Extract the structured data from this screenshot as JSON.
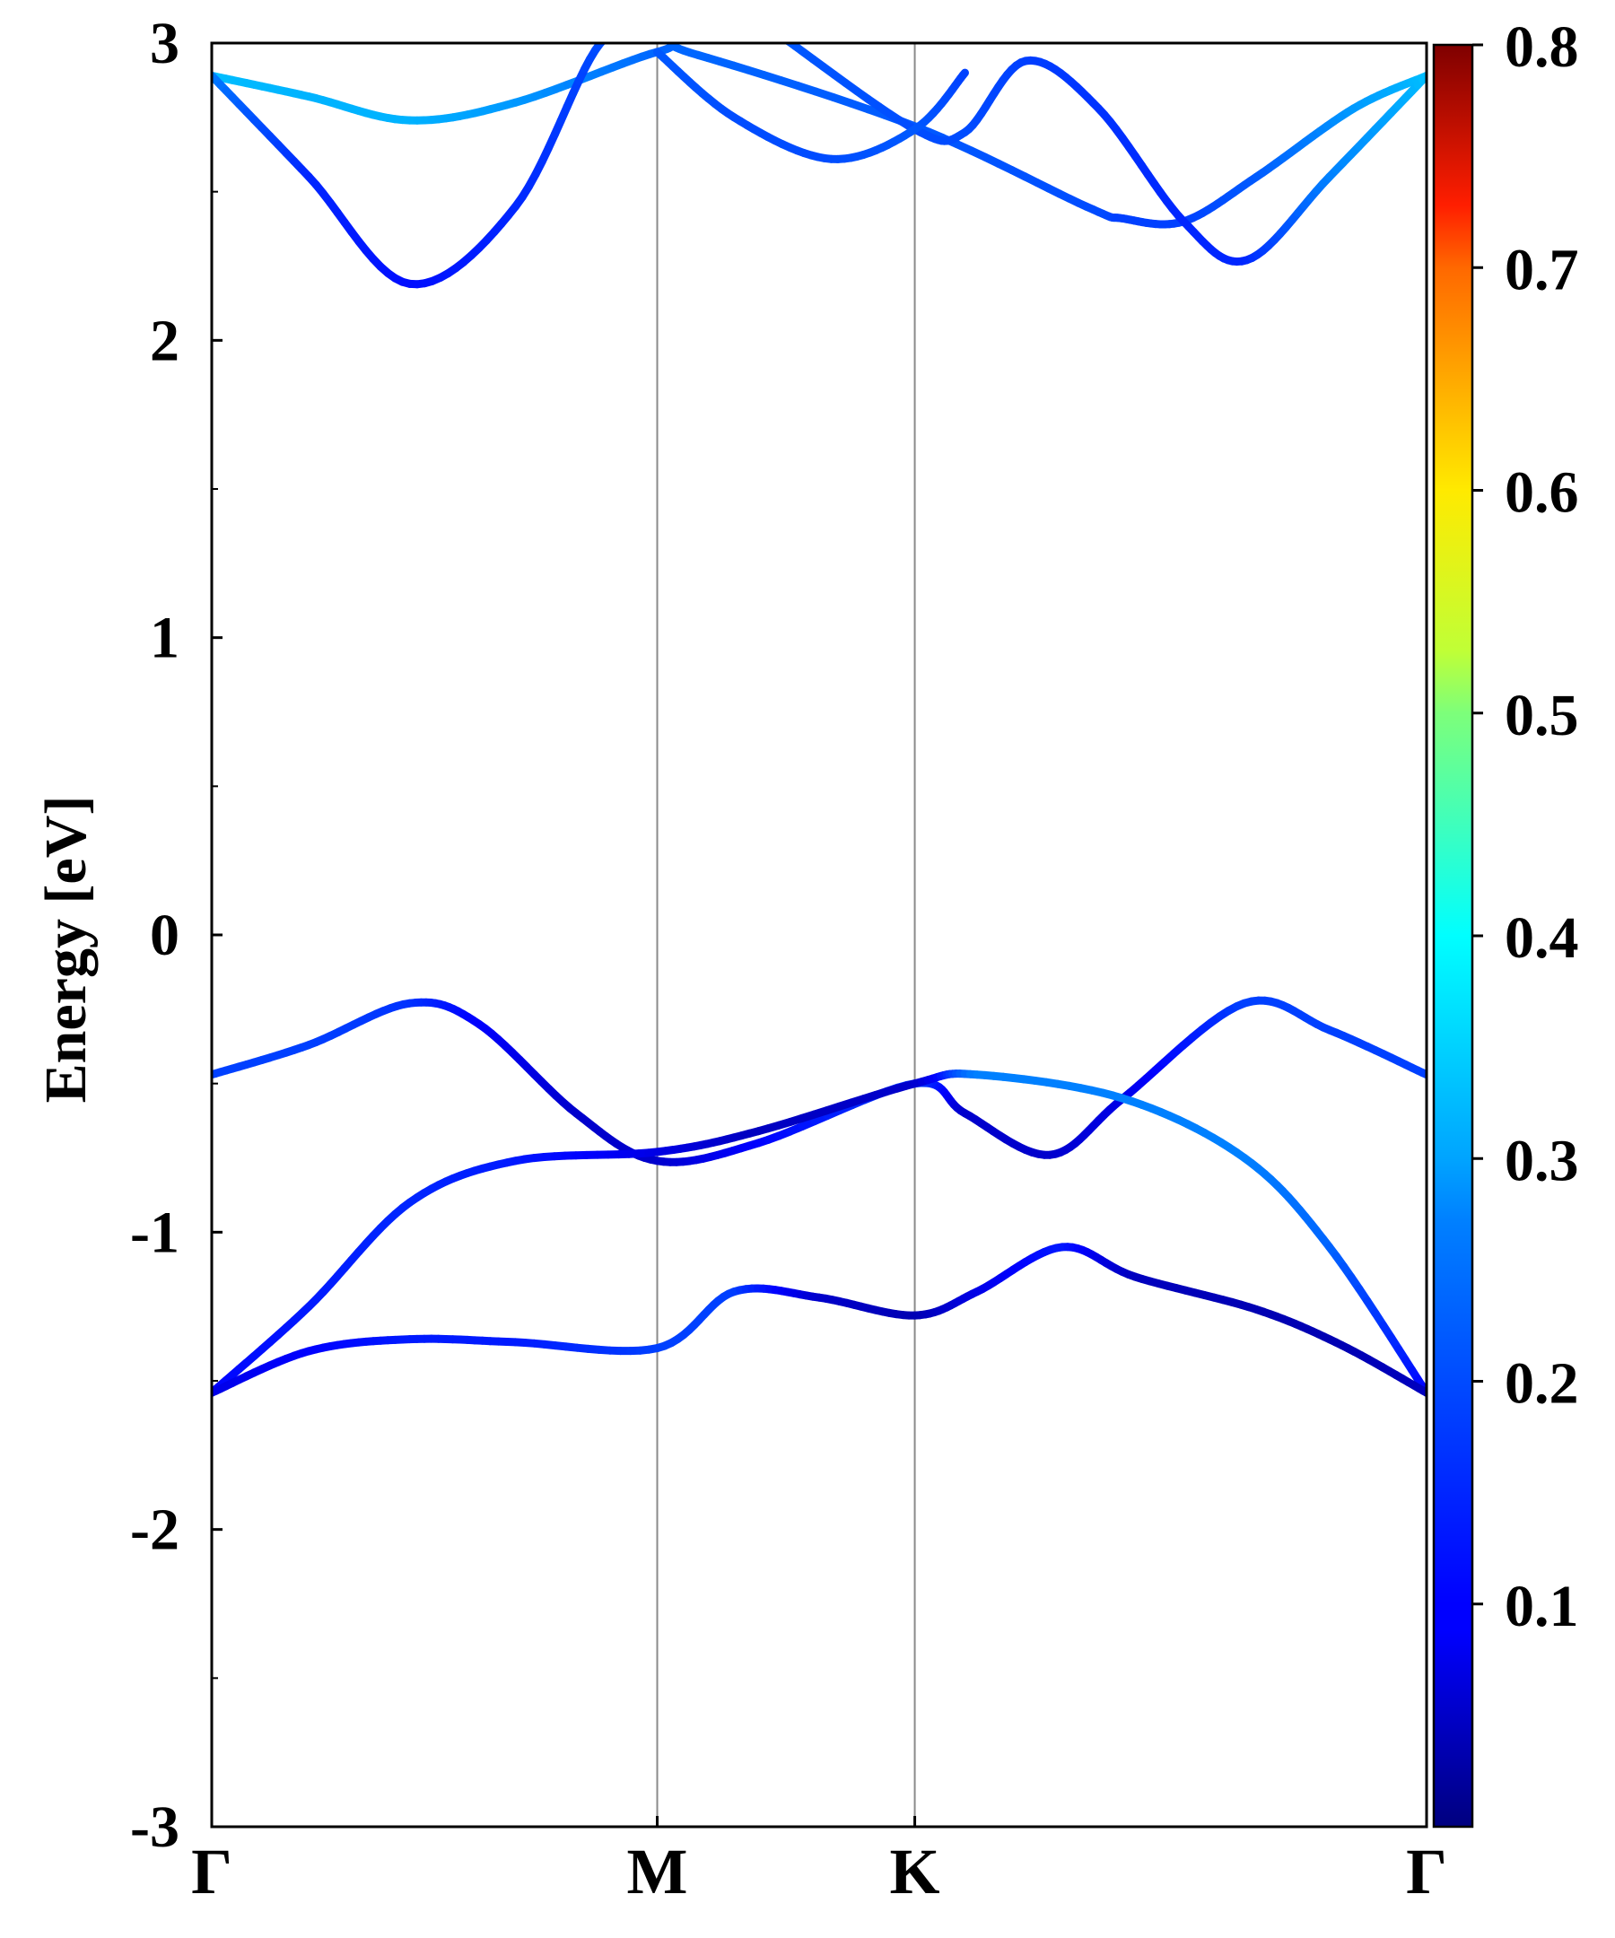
{
  "chart_data": {
    "type": "line",
    "title": "",
    "ylabel": "Energy [eV]",
    "xlabel": "",
    "ylim": [
      -3,
      3
    ],
    "yticks": [
      "3",
      "2",
      "1",
      "0",
      "-1",
      "-2",
      "-3"
    ],
    "ytick_values": [
      3,
      2,
      1,
      0,
      -1,
      -2,
      -3
    ],
    "xticks": [
      {
        "label": "Γ",
        "k": 0
      },
      {
        "label": "M",
        "k": 0.3667
      },
      {
        "label": "K",
        "k": 0.5787
      },
      {
        "label": "Γ",
        "k": 1.0
      }
    ],
    "colorbar": {
      "colormap": "jet",
      "range": [
        0.0,
        0.8
      ],
      "ticks": [
        "0.8",
        "0.7",
        "0.6",
        "0.5",
        "0.4",
        "0.3",
        "0.2",
        "0.1"
      ],
      "tick_values": [
        0.8,
        0.7,
        0.6,
        0.5,
        0.4,
        0.3,
        0.2,
        0.1
      ]
    },
    "series": [
      {
        "points": [
          [
            0,
            2.89,
            0.25
          ],
          [
            0.08,
            2.82,
            0.24
          ],
          [
            0.163,
            2.74,
            0.24
          ],
          [
            0.25,
            2.8,
            0.22
          ],
          [
            0.3667,
            2.97,
            0.18
          ],
          [
            0.4,
            2.96,
            0.18
          ],
          [
            0.5787,
            2.72,
            0.17
          ],
          [
            0.72,
            2.45,
            0.16
          ],
          [
            0.75,
            2.41,
            0.15
          ],
          [
            0.8,
            2.4,
            0.15
          ],
          [
            0.86,
            2.55,
            0.17
          ],
          [
            0.94,
            2.78,
            0.22
          ],
          [
            1.0,
            2.89,
            0.25
          ]
        ]
      },
      {
        "points": [
          [
            0,
            2.89,
            0.2
          ],
          [
            0.08,
            2.55,
            0.13
          ],
          [
            0.163,
            2.19,
            0.11
          ],
          [
            0.25,
            2.45,
            0.13
          ],
          [
            0.32,
            3.0,
            0.16
          ],
          [
            0.3667,
            3.02,
            0.17
          ]
        ]
      },
      {
        "points": [
          [
            0.47,
            3.02,
            0.17
          ],
          [
            0.5787,
            2.71,
            0.16
          ],
          [
            0.62,
            2.7,
            0.16
          ],
          [
            0.67,
            2.94,
            0.15
          ],
          [
            0.73,
            2.78,
            0.14
          ],
          [
            0.8,
            2.4,
            0.13
          ],
          [
            0.852,
            2.27,
            0.13
          ],
          [
            0.92,
            2.55,
            0.2
          ],
          [
            1.0,
            2.89,
            0.25
          ]
        ]
      },
      {
        "points": [
          [
            0.3667,
            2.97,
            0.17
          ],
          [
            0.43,
            2.75,
            0.16
          ],
          [
            0.51,
            2.61,
            0.16
          ],
          [
            0.5787,
            2.71,
            0.17
          ],
          [
            0.62,
            2.9,
            0.15
          ]
        ]
      },
      {
        "points": [
          [
            0,
            -0.47,
            0.15
          ],
          [
            0.08,
            -0.37,
            0.15
          ],
          [
            0.163,
            -0.23,
            0.14
          ],
          [
            0.22,
            -0.3,
            0.1
          ],
          [
            0.3,
            -0.6,
            0.06
          ],
          [
            0.3667,
            -0.76,
            0.06
          ],
          [
            0.45,
            -0.7,
            0.1
          ],
          [
            0.5787,
            -0.5,
            0.15
          ],
          [
            0.62,
            -0.6,
            0.06
          ],
          [
            0.69,
            -0.74,
            0.06
          ],
          [
            0.75,
            -0.55,
            0.08
          ],
          [
            0.85,
            -0.23,
            0.15
          ],
          [
            0.92,
            -0.32,
            0.15
          ],
          [
            1.0,
            -0.47,
            0.15
          ]
        ]
      },
      {
        "points": [
          [
            0,
            -1.54,
            0.1
          ],
          [
            0.08,
            -1.25,
            0.12
          ],
          [
            0.163,
            -0.9,
            0.13
          ],
          [
            0.25,
            -0.76,
            0.12
          ],
          [
            0.3667,
            -0.73,
            0.08
          ],
          [
            0.45,
            -0.66,
            0.05
          ],
          [
            0.5787,
            -0.5,
            0.06
          ],
          [
            0.63,
            -0.47,
            0.2
          ],
          [
            0.75,
            -0.55,
            0.2
          ],
          [
            0.85,
            -0.75,
            0.2
          ],
          [
            0.92,
            -1.05,
            0.18
          ],
          [
            1.0,
            -1.54,
            0.1
          ]
        ]
      },
      {
        "points": [
          [
            0,
            -1.54,
            0.08
          ],
          [
            0.08,
            -1.4,
            0.1
          ],
          [
            0.163,
            -1.36,
            0.12
          ],
          [
            0.25,
            -1.37,
            0.12
          ],
          [
            0.3667,
            -1.39,
            0.15
          ],
          [
            0.43,
            -1.2,
            0.15
          ],
          [
            0.5,
            -1.22,
            0.06
          ],
          [
            0.5787,
            -1.28,
            0.04
          ],
          [
            0.63,
            -1.2,
            0.08
          ],
          [
            0.7,
            -1.05,
            0.12
          ],
          [
            0.76,
            -1.15,
            0.05
          ],
          [
            0.86,
            -1.26,
            0.04
          ],
          [
            0.93,
            -1.38,
            0.04
          ],
          [
            1.0,
            -1.54,
            0.05
          ]
        ]
      }
    ]
  }
}
